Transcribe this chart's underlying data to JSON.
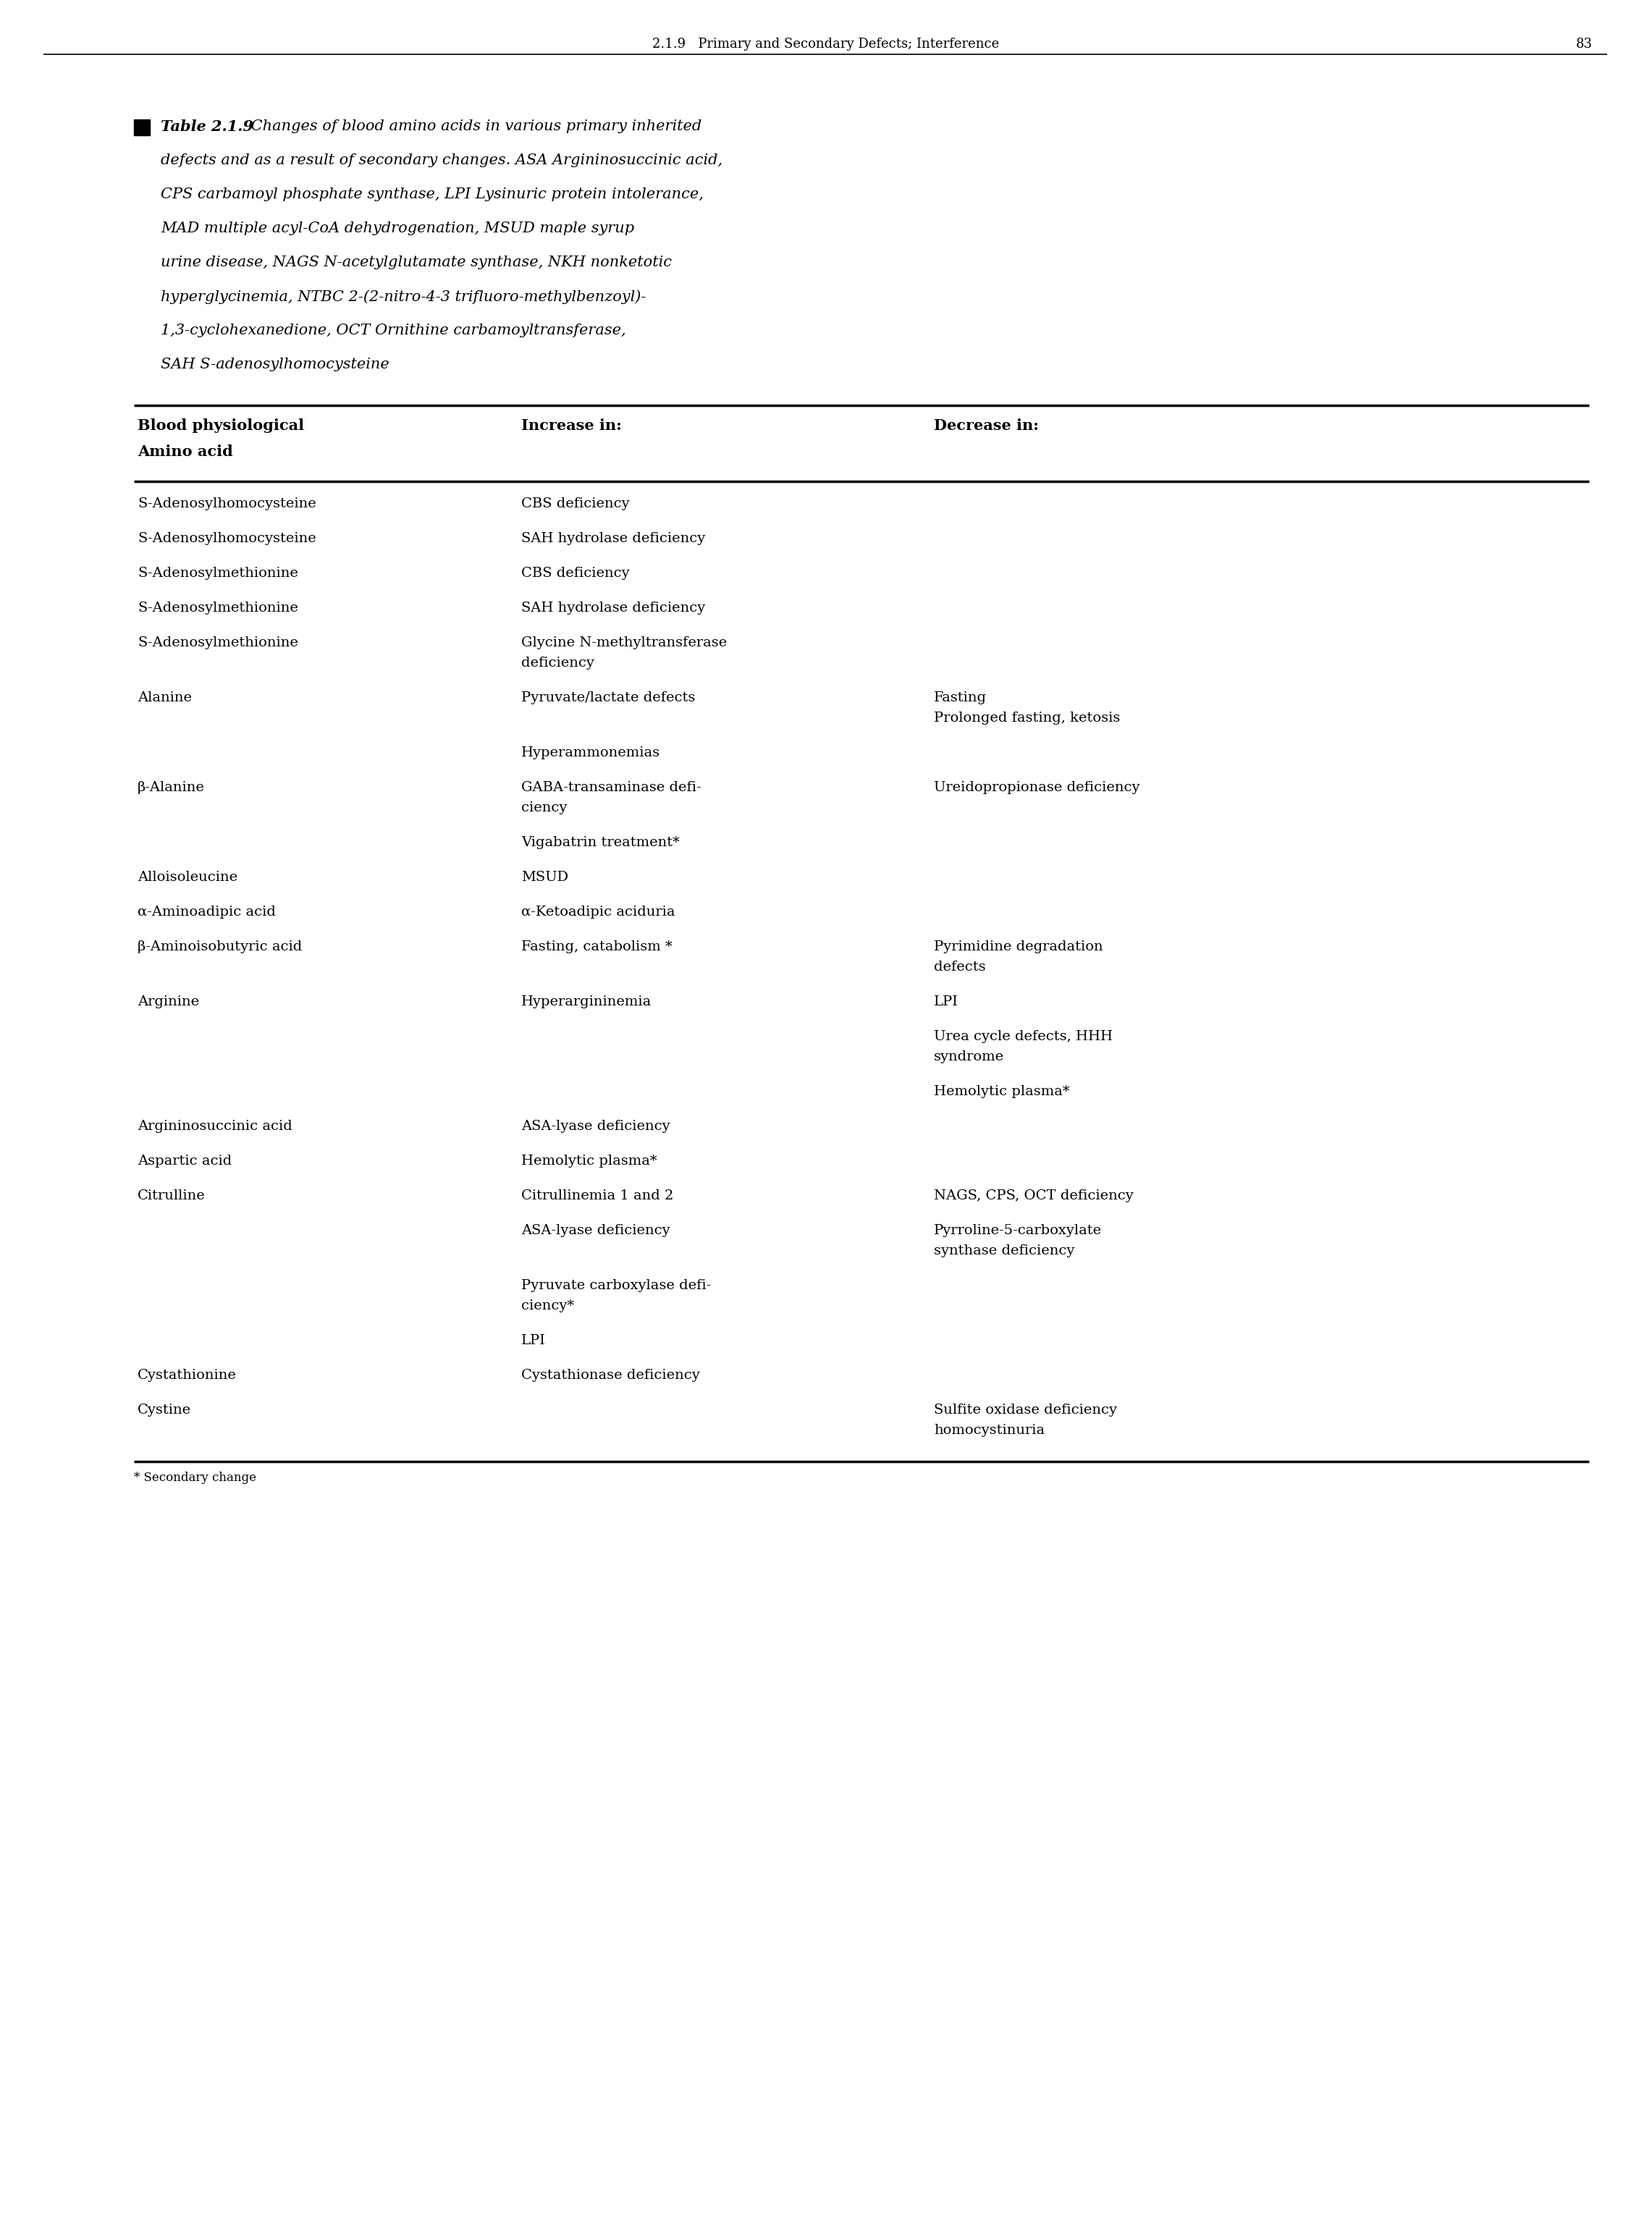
{
  "page_header": "2.1.9   Primary and Secondary Defects; Interference",
  "page_number": "83",
  "col_headers": [
    "Blood physiological\nAmino acid",
    "Increase in:",
    "Decrease in:"
  ],
  "footer_note": "* Secondary change",
  "rows": [
    {
      "amino": "S-Adenosylhomocysteine",
      "increase": "CBS deficiency",
      "decrease": ""
    },
    {
      "amino": "S-Adenosylhomocysteine",
      "increase": "SAH hydrolase deficiency",
      "decrease": ""
    },
    {
      "amino": "S-Adenosylmethionine",
      "increase": "CBS deficiency",
      "decrease": ""
    },
    {
      "amino": "S-Adenosylmethionine",
      "increase": "SAH hydrolase deficiency",
      "decrease": ""
    },
    {
      "amino": "S-Adenosylmethionine",
      "increase": "Glycine N-methyltransferase\ndeficiency",
      "decrease": ""
    },
    {
      "amino": "Alanine",
      "increase": "Pyruvate/lactate defects",
      "decrease": "Fasting\nProlonged fasting, ketosis"
    },
    {
      "amino": "",
      "increase": "Hyperammonemias",
      "decrease": ""
    },
    {
      "amino": "β-Alanine",
      "increase": "GABA-transaminase defi-\nciency",
      "decrease": "Ureidopropionase deficiency"
    },
    {
      "amino": "",
      "increase": "Vigabatrin treatment*",
      "decrease": ""
    },
    {
      "amino": "Alloisoleucine",
      "increase": "MSUD",
      "decrease": ""
    },
    {
      "amino": "α-Aminoadipic acid",
      "increase": "α-Ketoadipic aciduria",
      "decrease": ""
    },
    {
      "amino": "β-Aminoisobutyric acid",
      "increase": "Fasting, catabolism *",
      "decrease": "Pyrimidine degradation\ndefects"
    },
    {
      "amino": "Arginine",
      "increase": "Hyperargininemia",
      "decrease": "LPI"
    },
    {
      "amino": "",
      "increase": "",
      "decrease": "Urea cycle defects, HHH\nsyndrome"
    },
    {
      "amino": "",
      "increase": "",
      "decrease": "Hemolytic plasma*"
    },
    {
      "amino": "Argininosuccinic acid",
      "increase": "ASA-lyase deficiency",
      "decrease": ""
    },
    {
      "amino": "Aspartic acid",
      "increase": "Hemolytic plasma*",
      "decrease": ""
    },
    {
      "amino": "Citrulline",
      "increase": "Citrullinemia 1 and 2",
      "decrease": "NAGS, CPS, OCT deficiency"
    },
    {
      "amino": "",
      "increase": "ASA-lyase deficiency",
      "decrease": "Pyrroline-5-carboxylate\nsynthase deficiency"
    },
    {
      "amino": "",
      "increase": "Pyruvate carboxylase defi-\nciency*",
      "decrease": ""
    },
    {
      "amino": "",
      "increase": "LPI",
      "decrease": ""
    },
    {
      "amino": "Cystathionine",
      "increase": "Cystathionase deficiency",
      "decrease": ""
    },
    {
      "amino": "Cystine",
      "increase": "",
      "decrease": "Sulfite oxidase deficiency\nhomocystinuria"
    }
  ]
}
